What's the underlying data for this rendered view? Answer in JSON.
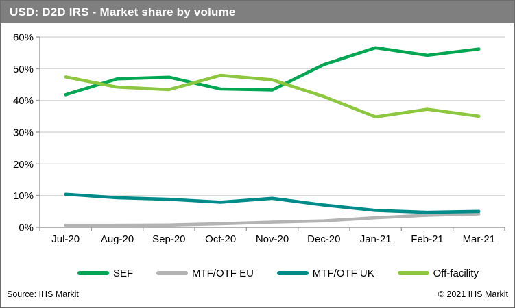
{
  "header": {
    "title": "USD: D2D IRS - Market share by volume"
  },
  "footer": {
    "source": "Source: IHS Markit",
    "copyright": "© 2021 IHS Markit"
  },
  "colors": {
    "header_bg": "#7f7f7f",
    "header_text": "#ffffff",
    "gridline": "#d9d9d9",
    "axis": "#999999",
    "label_text": "#000000",
    "sef_green": "#00a651",
    "mtf_otf_eu_gray": "#b3b3b3",
    "mtf_otf_uk_teal": "#008b8b",
    "off_facility_lime": "#8dc63f"
  },
  "chart_data": {
    "type": "line",
    "title": "USD: D2D IRS - Market share by volume",
    "categories": [
      "Jul-20",
      "Aug-20",
      "Sep-20",
      "Oct-20",
      "Nov-20",
      "Dec-20",
      "Jan-21",
      "Feb-21",
      "Mar-21"
    ],
    "series": [
      {
        "name": "SEF",
        "color": "#00a651",
        "values": [
          41.8,
          46.8,
          47.3,
          43.6,
          43.3,
          51.3,
          56.6,
          54.2,
          56.2
        ]
      },
      {
        "name": "MTF/OTF EU",
        "color": "#b3b3b3",
        "values": [
          0.6,
          0.6,
          0.7,
          1.1,
          1.6,
          2.0,
          3.0,
          3.8,
          4.2
        ]
      },
      {
        "name": "MTF/OTF UK",
        "color": "#008b8b",
        "values": [
          10.4,
          9.3,
          8.8,
          7.9,
          9.1,
          7.0,
          5.3,
          4.7,
          5.0
        ]
      },
      {
        "name": "Off-facility",
        "color": "#8dc63f",
        "values": [
          47.4,
          44.2,
          43.4,
          47.9,
          46.5,
          41.2,
          34.8,
          37.2,
          35.0
        ]
      }
    ],
    "ylim": [
      0,
      60
    ],
    "ytick_step": 10,
    "ytick_labels": [
      "0%",
      "10%",
      "20%",
      "30%",
      "40%",
      "50%",
      "60%"
    ],
    "ylabel": "",
    "xlabel": "",
    "grid": true,
    "legend_position": "bottom"
  }
}
